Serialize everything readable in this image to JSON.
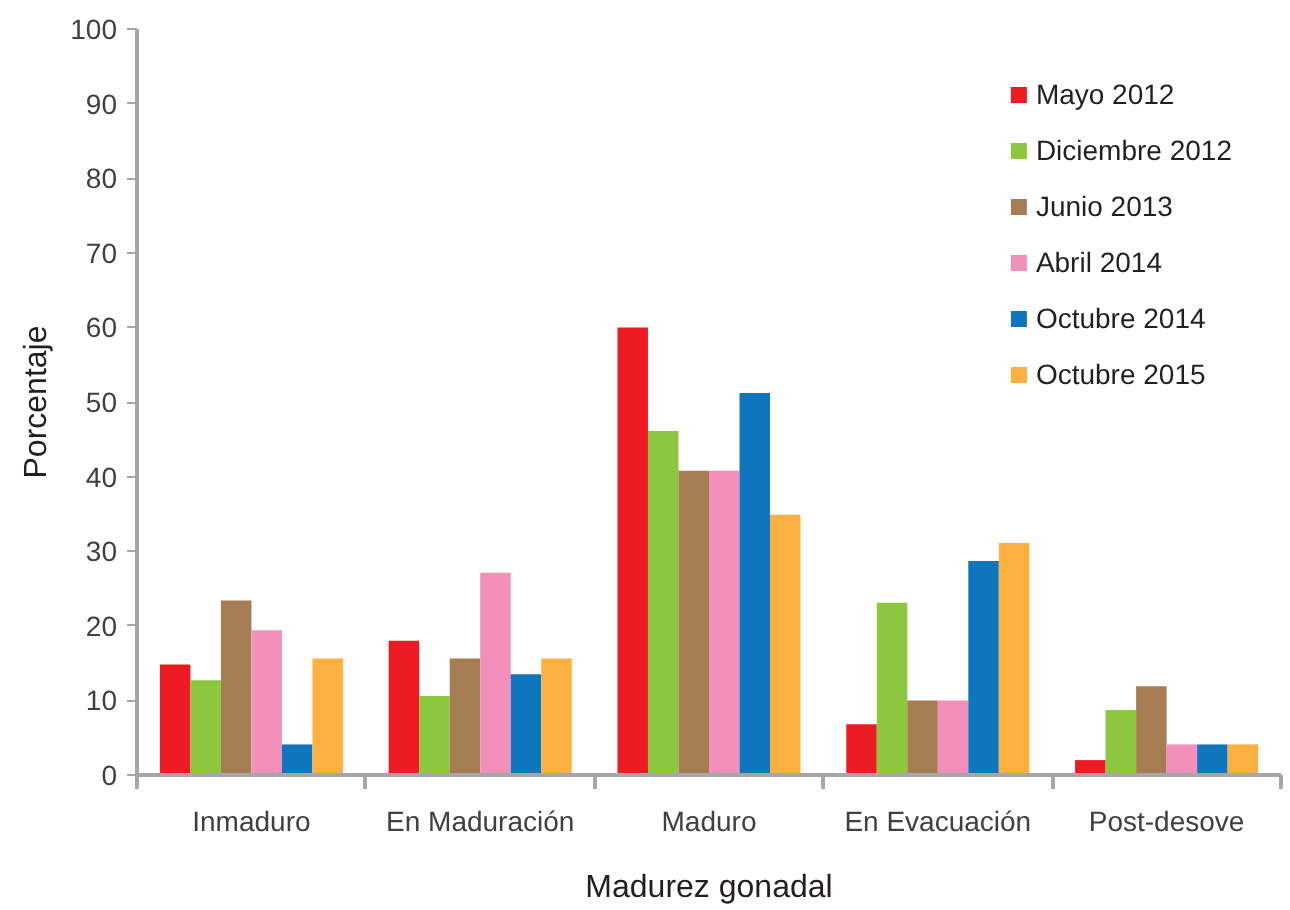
{
  "chart_data": {
    "type": "bar",
    "xlabel": "Madurez gonadal",
    "ylabel": "Porcentaje",
    "categories": [
      "Inmaduro",
      "En Maduración",
      "Maduro",
      "En Evacuación",
      "Post-desove"
    ],
    "series": [
      {
        "name": "Mayo 2012",
        "color": "#ed1c24",
        "values": [
          14.8,
          18.0,
          60.0,
          6.8,
          2.0
        ]
      },
      {
        "name": "Diciembre 2012",
        "color": "#8dc63f",
        "values": [
          12.7,
          10.6,
          46.1,
          23.1,
          8.7
        ]
      },
      {
        "name": "Junio 2013",
        "color": "#a67c52",
        "values": [
          23.4,
          15.6,
          40.8,
          10.0,
          11.9
        ]
      },
      {
        "name": "Abril 2014",
        "color": "#f28fbb",
        "values": [
          19.4,
          27.1,
          40.8,
          10.0,
          4.1
        ]
      },
      {
        "name": "Octubre 2014",
        "color": "#0f75bc",
        "values": [
          4.1,
          13.5,
          51.2,
          28.7,
          4.1
        ]
      },
      {
        "name": "Octubre 2015",
        "color": "#fbb040",
        "values": [
          15.6,
          15.6,
          34.9,
          31.1,
          4.1
        ]
      }
    ],
    "ylim": [
      0,
      100
    ],
    "yticks": [
      0,
      10,
      20,
      30,
      40,
      50,
      60,
      70,
      80,
      90,
      100
    ],
    "legend": "top right"
  }
}
